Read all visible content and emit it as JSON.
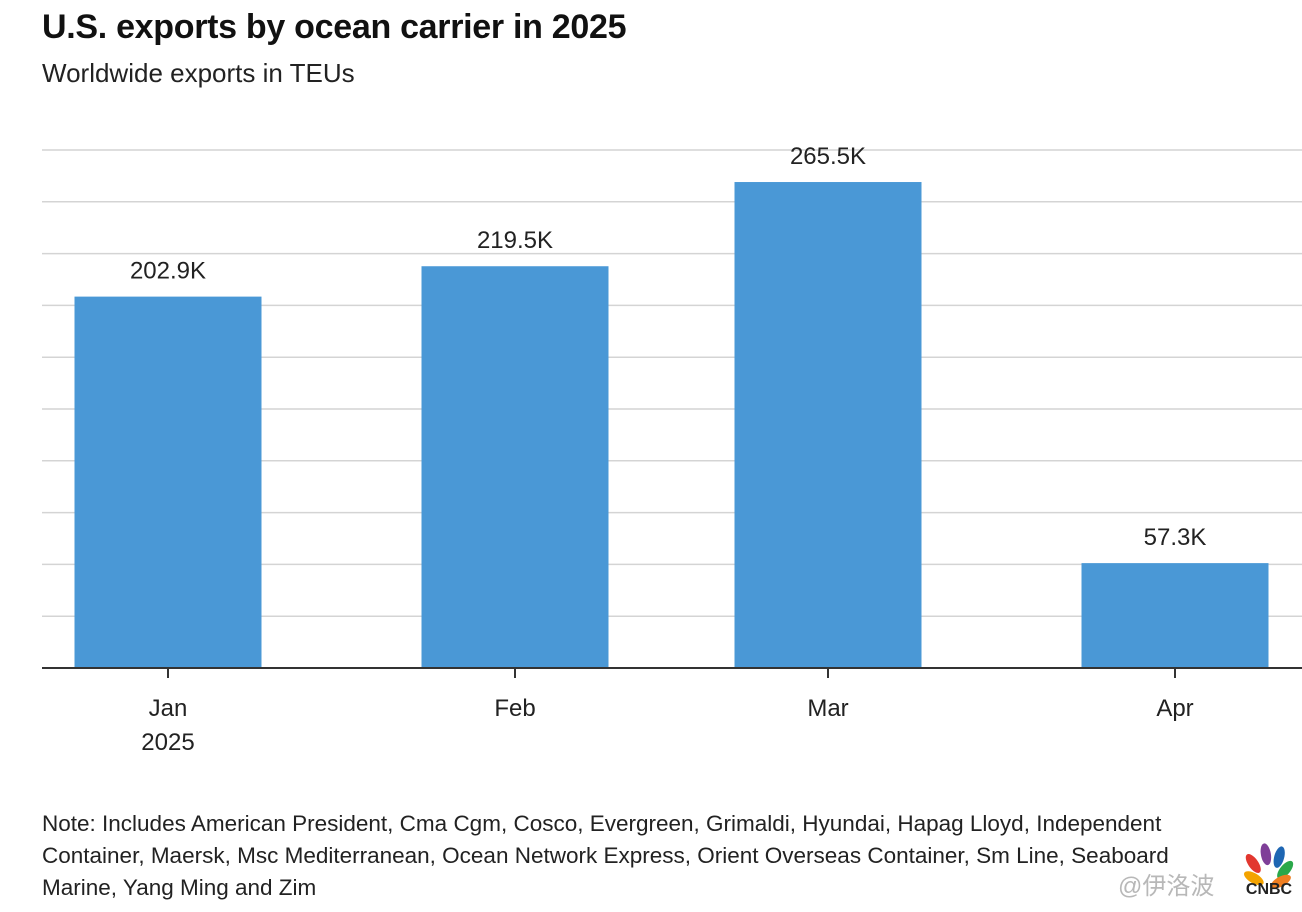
{
  "title": "U.S. exports by ocean carrier in 2025",
  "subtitle": "Worldwide exports in TEUs",
  "note": "Note: Includes American President, Cma Cgm, Cosco, Evergreen, Grimaldi, Hyundai, Hapag Lloyd, Independent Container, Maersk, Msc Mediterranean, Ocean Network Express, Orient Overseas Container, Sm Line, Seaboard Marine, Yang Ming and Zim",
  "watermark": "@伊洛波",
  "logo_text": "CNBC",
  "colors": {
    "bar": "#4a98d6",
    "grid": "#d4d4d4",
    "axis": "#333333",
    "text": "#222222"
  },
  "chart_data": {
    "type": "bar",
    "title": "U.S. exports by ocean carrier in 2025",
    "subtitle": "Worldwide exports in TEUs",
    "categories": [
      "Jan",
      "Feb",
      "Mar",
      "Apr"
    ],
    "category_sublabels": [
      "2025",
      "",
      "",
      ""
    ],
    "values": [
      202900,
      219500,
      265500,
      57300
    ],
    "data_labels": [
      "202.9K",
      "219.5K",
      "265.5K",
      "57.3K"
    ],
    "ylim": [
      0,
      283000
    ],
    "grid": true,
    "gridline_step": 28300,
    "xlabel": "",
    "ylabel": ""
  }
}
